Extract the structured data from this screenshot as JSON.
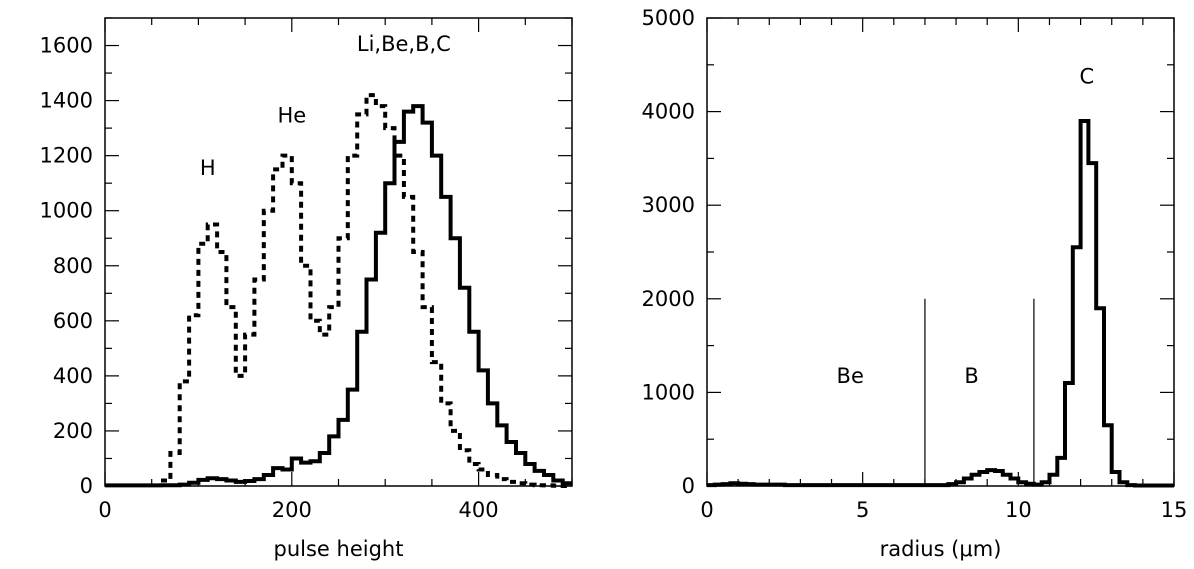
{
  "chart_data": [
    {
      "type": "line",
      "step": true,
      "xlabel": "pulse height",
      "ylabel": "",
      "xlim": [
        0,
        500
      ],
      "ylim": [
        0,
        1700
      ],
      "xticks": [
        0,
        200,
        400
      ],
      "yticks": [
        0,
        200,
        400,
        600,
        800,
        1000,
        1200,
        1400,
        1600
      ],
      "bin_width": 10,
      "annotations": [
        {
          "text": "H",
          "x": 110,
          "y": 1130
        },
        {
          "text": "He",
          "x": 200,
          "y": 1320
        },
        {
          "text": "Li,Be,B,C",
          "x": 320,
          "y": 1580
        }
      ],
      "series": [
        {
          "style": "dashed",
          "x_start": 60,
          "values": [
            20,
            120,
            380,
            620,
            880,
            950,
            850,
            650,
            400,
            550,
            750,
            1000,
            1150,
            1200,
            1100,
            800,
            600,
            550,
            650,
            900,
            1200,
            1350,
            1420,
            1380,
            1300,
            1200,
            1050,
            850,
            650,
            450,
            300,
            200,
            130,
            80,
            60,
            40,
            25,
            15,
            10,
            5,
            3,
            2,
            1,
            0
          ]
        },
        {
          "style": "solid",
          "x_start": 0,
          "values": [
            2,
            2,
            2,
            2,
            2,
            2,
            3,
            3,
            5,
            12,
            22,
            28,
            25,
            20,
            15,
            18,
            25,
            40,
            65,
            60,
            100,
            85,
            90,
            120,
            180,
            240,
            350,
            560,
            750,
            920,
            1100,
            1250,
            1360,
            1380,
            1320,
            1200,
            1050,
            900,
            720,
            560,
            420,
            300,
            220,
            160,
            120,
            80,
            55,
            40,
            20,
            10
          ]
        }
      ]
    },
    {
      "type": "line",
      "step": true,
      "xlabel": "radius (μm)",
      "ylabel": "",
      "xlim": [
        0,
        15
      ],
      "ylim": [
        0,
        5000
      ],
      "xticks": [
        0,
        5,
        10,
        15
      ],
      "yticks": [
        0,
        1000,
        2000,
        3000,
        4000,
        5000
      ],
      "bin_width": 0.25,
      "divider_lines": [
        7,
        10.5
      ],
      "divider_top": 2000,
      "annotations": [
        {
          "text": "Be",
          "x": 4.6,
          "y": 1100
        },
        {
          "text": "B",
          "x": 8.5,
          "y": 1100
        },
        {
          "text": "C",
          "x": 12.2,
          "y": 4300
        }
      ],
      "series": [
        {
          "style": "solid",
          "x_start": 0,
          "values": [
            10,
            15,
            20,
            30,
            25,
            20,
            15,
            15,
            15,
            15,
            10,
            10,
            10,
            10,
            10,
            10,
            10,
            10,
            10,
            10,
            10,
            10,
            10,
            10,
            10,
            10,
            10,
            10,
            10,
            10,
            10,
            20,
            40,
            80,
            120,
            150,
            170,
            160,
            120,
            80,
            40,
            25,
            15,
            40,
            120,
            300,
            1100,
            2550,
            3900,
            3450,
            1900,
            650,
            150,
            40,
            10,
            5,
            5,
            5,
            5,
            5
          ]
        }
      ]
    }
  ]
}
